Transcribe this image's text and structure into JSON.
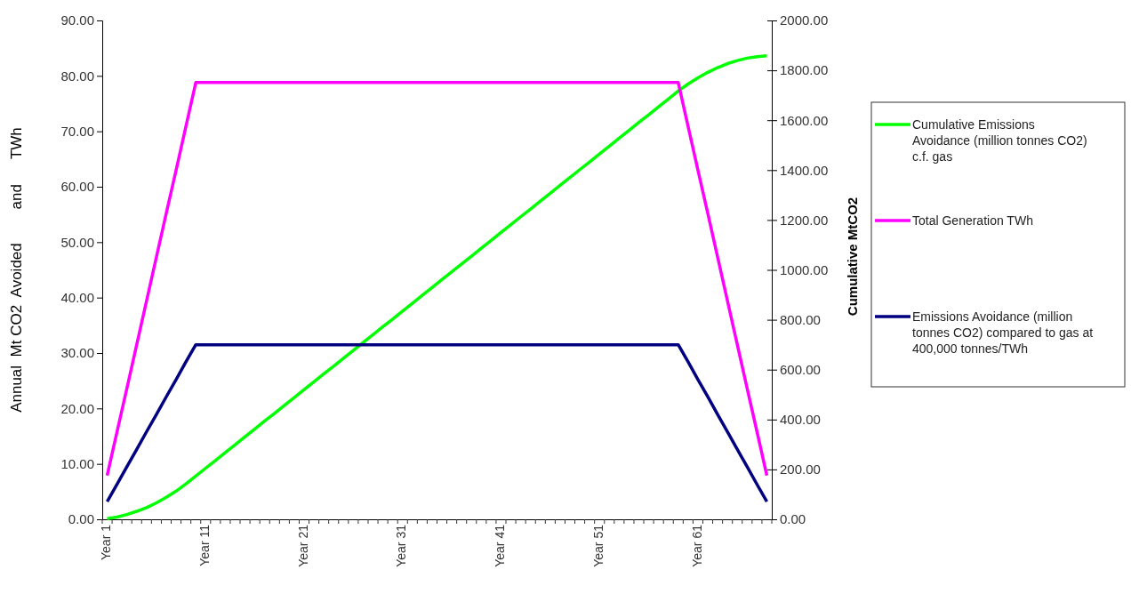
{
  "chart_data": {
    "type": "line",
    "ylabel": "Annual  Mt CO2  Avoided        and      TWh",
    "y2label": "Cumulative MtCO2",
    "categories": [
      "Year 1",
      null,
      null,
      null,
      null,
      null,
      null,
      null,
      null,
      null,
      "Year 11",
      null,
      null,
      null,
      null,
      null,
      null,
      null,
      null,
      null,
      "Year 21",
      null,
      null,
      null,
      null,
      null,
      null,
      null,
      null,
      null,
      "Year 31",
      null,
      null,
      null,
      null,
      null,
      null,
      null,
      null,
      null,
      "Year 41",
      null,
      null,
      null,
      null,
      null,
      null,
      null,
      null,
      null,
      "Year 51",
      null,
      null,
      null,
      null,
      null,
      null,
      null,
      null,
      null,
      "Year 61",
      null,
      null,
      null,
      null,
      null,
      null,
      null
    ],
    "series": [
      {
        "name": "Cumulative Emissions Avoidance (million tonnes CO2) c.f. gas",
        "color": "#00ff00",
        "axis": "y2",
        "values": [
          3,
          9,
          19,
          32,
          47,
          66,
          88,
          113,
          142,
          173,
          205,
          236,
          268,
          299,
          331,
          362,
          394,
          425,
          457,
          488,
          520,
          551,
          583,
          614,
          646,
          677,
          709,
          740,
          772,
          803,
          835,
          866,
          898,
          929,
          961,
          992,
          1024,
          1055,
          1087,
          1118,
          1150,
          1181,
          1213,
          1244,
          1276,
          1307,
          1339,
          1370,
          1402,
          1433,
          1465,
          1496,
          1528,
          1559,
          1591,
          1622,
          1654,
          1685,
          1717,
          1745,
          1770,
          1792,
          1811,
          1827,
          1839,
          1849,
          1855,
          1858
        ]
      },
      {
        "name": "Total Generation TWh",
        "color": "#ff00ff",
        "values": [
          7.9,
          15.8,
          23.6,
          31.5,
          39.4,
          47.3,
          55.2,
          63.0,
          70.9,
          78.8,
          78.8,
          78.8,
          78.8,
          78.8,
          78.8,
          78.8,
          78.8,
          78.8,
          78.8,
          78.8,
          78.8,
          78.8,
          78.8,
          78.8,
          78.8,
          78.8,
          78.8,
          78.8,
          78.8,
          78.8,
          78.8,
          78.8,
          78.8,
          78.8,
          78.8,
          78.8,
          78.8,
          78.8,
          78.8,
          78.8,
          78.8,
          78.8,
          78.8,
          78.8,
          78.8,
          78.8,
          78.8,
          78.8,
          78.8,
          78.8,
          78.8,
          78.8,
          78.8,
          78.8,
          78.8,
          78.8,
          78.8,
          78.8,
          78.8,
          70.9,
          63.0,
          55.2,
          47.3,
          39.4,
          31.5,
          23.6,
          15.8,
          7.9
        ]
      },
      {
        "name": "Emissions Avoidance (million tonnes CO2) compared to gas at 400,000 tonnes/TWh",
        "color": "#000080",
        "values": [
          3.2,
          6.3,
          9.5,
          12.6,
          15.8,
          18.9,
          22.1,
          25.2,
          28.4,
          31.5,
          31.5,
          31.5,
          31.5,
          31.5,
          31.5,
          31.5,
          31.5,
          31.5,
          31.5,
          31.5,
          31.5,
          31.5,
          31.5,
          31.5,
          31.5,
          31.5,
          31.5,
          31.5,
          31.5,
          31.5,
          31.5,
          31.5,
          31.5,
          31.5,
          31.5,
          31.5,
          31.5,
          31.5,
          31.5,
          31.5,
          31.5,
          31.5,
          31.5,
          31.5,
          31.5,
          31.5,
          31.5,
          31.5,
          31.5,
          31.5,
          31.5,
          31.5,
          31.5,
          31.5,
          31.5,
          31.5,
          31.5,
          31.5,
          31.5,
          28.4,
          25.2,
          22.1,
          18.9,
          15.8,
          12.6,
          9.5,
          6.3,
          3.2
        ]
      }
    ],
    "ylim": [
      0,
      90
    ],
    "yticks": [
      {
        "value": 0,
        "label": "0.00"
      },
      {
        "value": 10,
        "label": "10.00"
      },
      {
        "value": 20,
        "label": "20.00"
      },
      {
        "value": 30,
        "label": "30.00"
      },
      {
        "value": 40,
        "label": "40.00"
      },
      {
        "value": 50,
        "label": "50.00"
      },
      {
        "value": 60,
        "label": "60.00"
      },
      {
        "value": 70,
        "label": "70.00"
      },
      {
        "value": 80,
        "label": "80.00"
      },
      {
        "value": 90,
        "label": "90.00"
      }
    ],
    "y2lim": [
      0,
      2000
    ],
    "y2ticks": [
      {
        "value": 0,
        "label": "0.00"
      },
      {
        "value": 200,
        "label": "200.00"
      },
      {
        "value": 400,
        "label": "400.00"
      },
      {
        "value": 600,
        "label": "600.00"
      },
      {
        "value": 800,
        "label": "800.00"
      },
      {
        "value": 1000,
        "label": "1000.00"
      },
      {
        "value": 1200,
        "label": "1200.00"
      },
      {
        "value": 1400,
        "label": "1400.00"
      },
      {
        "value": 1600,
        "label": "1600.00"
      },
      {
        "value": 1800,
        "label": "1800.00"
      },
      {
        "value": 2000,
        "label": "2000.00"
      }
    ],
    "grid": false,
    "legend": "right",
    "marker": "none",
    "line_style": "solid"
  }
}
